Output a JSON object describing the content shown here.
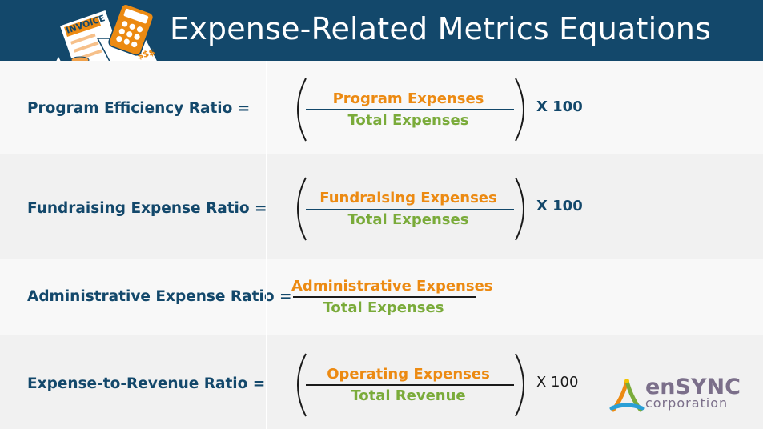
{
  "header": {
    "title": "Expense-Related Metrics Equations"
  },
  "illustration": {
    "invoice_text": "INVOICE",
    "dollar_text": "$$$"
  },
  "rows": [
    {
      "label": "Program Efficiency Ratio =",
      "numerator": "Program Expenses",
      "denominator": "Total Expenses",
      "multiplier": "X 100"
    },
    {
      "label": "Fundraising Expense Ratio =",
      "numerator": "Fundraising Expenses",
      "denominator": "Total Expenses",
      "multiplier": "X 100"
    },
    {
      "label": "Administrative Expense Ratio =",
      "numerator": "Administrative Expenses",
      "denominator": "Total Expenses"
    },
    {
      "label": "Expense-to-Revenue Ratio =",
      "numerator": "Operating Expenses",
      "denominator": "Total Revenue",
      "multiplier": "X 100"
    }
  ],
  "logo": {
    "name": "enSYNC",
    "tagline": "corporation"
  },
  "colors": {
    "navy": "#13486b",
    "orange": "#ec8a12",
    "green": "#7aab3a"
  }
}
